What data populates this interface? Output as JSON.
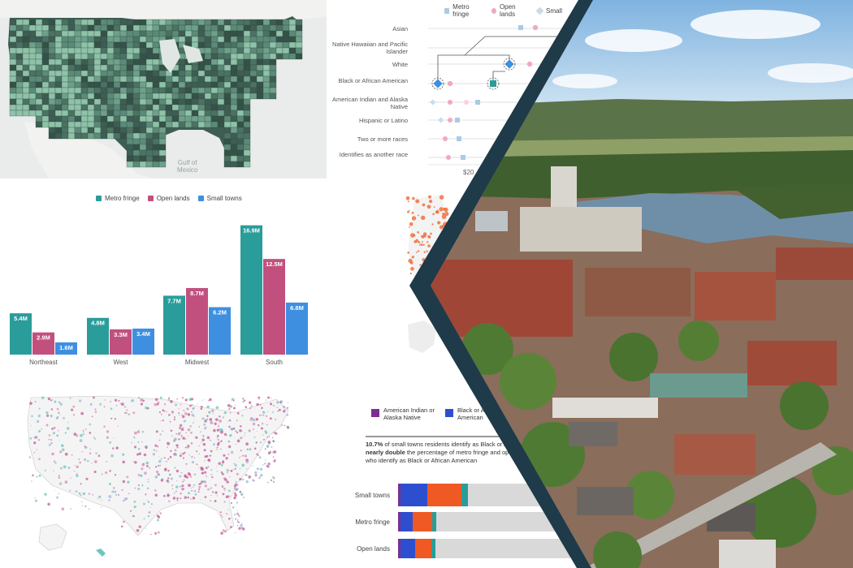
{
  "map_top": {
    "gulf_label_line1": "Gulf of",
    "gulf_label_line2": "Mexico",
    "colors": {
      "land_dark": "#3e5e54",
      "land_mid": "#5c8a78",
      "land_light": "#8fc2a8",
      "water": "#e9eceb"
    }
  },
  "bar_chart": {
    "legend": [
      {
        "label": "Metro fringe",
        "color": "#2a9d9a"
      },
      {
        "label": "Open lands",
        "color": "#c2507e"
      },
      {
        "label": "Small towns",
        "color": "#3e8fe0"
      }
    ]
  },
  "chart_data": [
    {
      "type": "bar",
      "categories": [
        "Northeast",
        "West",
        "Midwest",
        "South"
      ],
      "series": [
        {
          "name": "Metro fringe",
          "values": [
            5.4,
            4.8,
            7.7,
            16.9
          ],
          "labels": [
            "5.4M",
            "4.8M",
            "7.7M",
            "16.9M"
          ],
          "color": "#2a9d9a"
        },
        {
          "name": "Open lands",
          "values": [
            2.9,
            3.3,
            8.7,
            12.5
          ],
          "labels": [
            "2.9M",
            "3.3M",
            "8.7M",
            "12.5M"
          ],
          "color": "#c2507e"
        },
        {
          "name": "Small towns",
          "values": [
            1.6,
            3.4,
            6.2,
            6.8
          ],
          "labels": [
            "1.6M",
            "3.4M",
            "6.2M",
            "6.8M"
          ],
          "color": "#3e8fe0"
        }
      ],
      "ylim": [
        0,
        17.5
      ],
      "grid": false,
      "legend_position": "top"
    },
    {
      "type": "scatter",
      "legend": [
        "Metro fringe",
        "Open lands",
        "Small towns"
      ],
      "categories": [
        "Asian",
        "Native Hawaiian and Pacific Islander",
        "White",
        "Black or African American",
        "American Indian and Alaska Native",
        "Hispanic or Latino",
        "Two or more races",
        "Identifies as another race"
      ],
      "tick_label_visible": "$20"
    },
    {
      "type": "bar",
      "stacked": true,
      "categories": [
        "Small towns",
        "Metro fringe",
        "Open lands"
      ],
      "legend": [
        "American Indian or Alaska Native",
        "Black or African American"
      ],
      "note_parts": [
        "10.7%",
        " of small towns residents identify as Black or African American, ",
        "nearly double",
        " the percentage of metro fringe and open lands residents who identify as Black or African American"
      ]
    }
  ],
  "dotplot": {
    "legend": [
      "Metro fringe",
      "Open lands",
      "Small"
    ],
    "labels": [
      "Asian",
      "Native Hawaiian and Pacific Islander",
      "White",
      "Black or African American",
      "American Indian and Alaska Native",
      "Hispanic or Latino",
      "Two or more races",
      "Identifies as another race"
    ],
    "tick": "$20"
  },
  "stacked": {
    "legend_1": "American Indian or Alaska Native",
    "legend_2": "Black or African American",
    "note_bold_1": "10.7%",
    "note_text_1": " of small towns residents identify as Black or African American, ",
    "note_bold_2": "nearly double",
    "note_text_2": " the percentage of metro fringe and open lands residents who identify as Black or African American",
    "rows": [
      "Small towns",
      "Metro fringe",
      "Open lands"
    ]
  },
  "photo": {
    "colors": {
      "sky": "#9cc7e8",
      "river": "#6f8fa8",
      "trees": "#4a6b34",
      "brick": "#9b4a3a",
      "band": "#1f3a48"
    }
  }
}
